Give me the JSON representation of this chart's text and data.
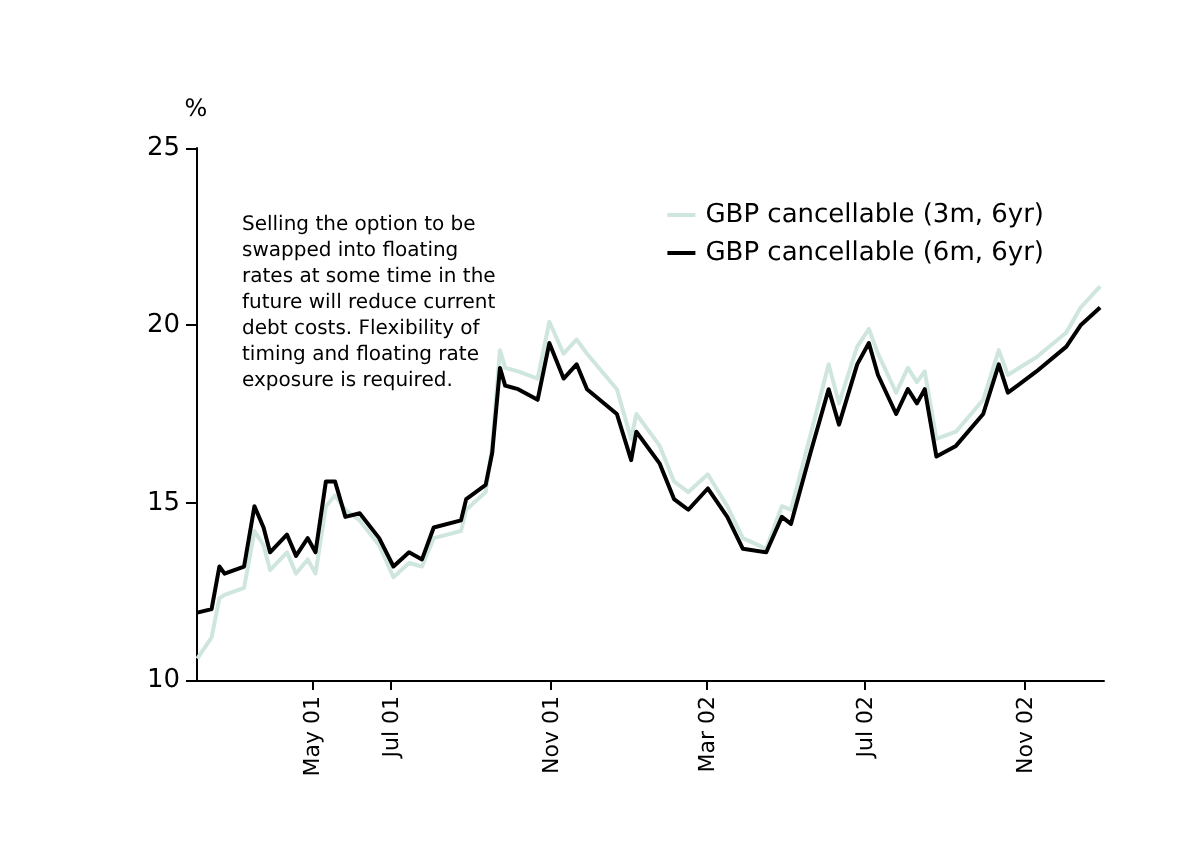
{
  "chart_data": {
    "type": "line",
    "ylabel": "%",
    "annotations": [
      "Selling the option to be\nswapped into floating\nrates at some time in the\nfuture will reduce current\ndebt costs. Flexibility of\ntiming and floating rate\nexposure is required."
    ],
    "x": [
      "2001-02-02",
      "2001-02-13",
      "2001-02-19",
      "2001-02-23",
      "2001-03-10",
      "2001-03-18",
      "2001-03-25",
      "2001-03-30",
      "2001-04-12",
      "2001-04-19",
      "2001-04-28",
      "2001-05-04",
      "2001-05-12",
      "2001-05-19",
      "2001-05-27",
      "2001-06-07",
      "2001-06-22",
      "2001-07-03",
      "2001-07-15",
      "2001-07-25",
      "2001-08-03",
      "2001-08-24",
      "2001-08-28",
      "2001-09-12",
      "2001-09-17",
      "2001-09-23",
      "2001-09-27",
      "2001-10-07",
      "2001-10-22",
      "2001-10-31",
      "2001-11-11",
      "2001-11-21",
      "2001-11-29",
      "2001-12-22",
      "2002-01-02",
      "2002-01-06",
      "2002-01-24",
      "2002-02-04",
      "2002-02-15",
      "2002-03-02",
      "2002-03-17",
      "2002-03-29",
      "2002-04-16",
      "2002-04-28",
      "2002-05-05",
      "2002-05-20",
      "2002-06-03",
      "2002-06-11",
      "2002-06-25",
      "2002-07-04",
      "2002-07-11",
      "2002-07-25",
      "2002-08-03",
      "2002-08-10",
      "2002-08-16",
      "2002-08-25",
      "2002-09-09",
      "2002-09-30",
      "2002-10-12",
      "2002-10-19",
      "2002-11-10",
      "2002-12-03",
      "2002-12-14",
      "2002-12-29"
    ],
    "series": [
      {
        "name": "GBP cancellable (3m, 6yr)",
        "color": "#cfe6de",
        "values": [
          10.6,
          11.2,
          12.3,
          12.4,
          12.6,
          14.2,
          13.8,
          13.1,
          13.6,
          13.0,
          13.4,
          13.0,
          14.9,
          15.2,
          14.8,
          14.5,
          13.8,
          12.9,
          13.3,
          13.2,
          14.0,
          14.2,
          14.8,
          15.3,
          16.6,
          19.3,
          18.8,
          18.7,
          18.5,
          20.1,
          19.2,
          19.6,
          19.2,
          18.2,
          16.8,
          17.5,
          16.6,
          15.6,
          15.3,
          15.8,
          14.9,
          14.0,
          13.7,
          14.9,
          14.8,
          16.9,
          18.9,
          17.8,
          19.4,
          19.9,
          19.2,
          18.1,
          18.8,
          18.4,
          18.7,
          16.8,
          17.0,
          17.9,
          19.3,
          18.6,
          19.1,
          19.8,
          20.5,
          21.1
        ]
      },
      {
        "name": "GBP cancellable (6m, 6yr)",
        "color": "#000000",
        "values": [
          11.9,
          12.0,
          13.2,
          13.0,
          13.2,
          14.9,
          14.3,
          13.6,
          14.1,
          13.5,
          14.0,
          13.6,
          15.6,
          15.6,
          14.6,
          14.7,
          14.0,
          13.2,
          13.6,
          13.4,
          14.3,
          14.5,
          15.1,
          15.5,
          16.4,
          18.8,
          18.3,
          18.2,
          17.9,
          19.5,
          18.5,
          18.9,
          18.2,
          17.5,
          16.2,
          17.0,
          16.1,
          15.1,
          14.8,
          15.4,
          14.6,
          13.7,
          13.6,
          14.6,
          14.4,
          16.4,
          18.2,
          17.2,
          18.9,
          19.5,
          18.6,
          17.5,
          18.2,
          17.8,
          18.2,
          16.3,
          16.6,
          17.5,
          18.9,
          18.1,
          18.7,
          19.4,
          20.0,
          20.5
        ]
      }
    ],
    "xlim": [
      "2001-02-01",
      "2003-01-01"
    ],
    "xticks": [
      {
        "value": "2001-05-01",
        "label": "May 01"
      },
      {
        "value": "2001-07-01",
        "label": "Jul 01"
      },
      {
        "value": "2001-11-01",
        "label": "Nov 01"
      },
      {
        "value": "2002-03-01",
        "label": "Mar 02"
      },
      {
        "value": "2002-07-01",
        "label": "Jul 02"
      },
      {
        "value": "2002-11-01",
        "label": "Nov 02"
      }
    ],
    "ylim": [
      10,
      25
    ],
    "yticks": [
      10,
      15,
      20,
      25
    ],
    "legend": "top right",
    "grid": false,
    "marker": "none",
    "line_style": "solid"
  }
}
